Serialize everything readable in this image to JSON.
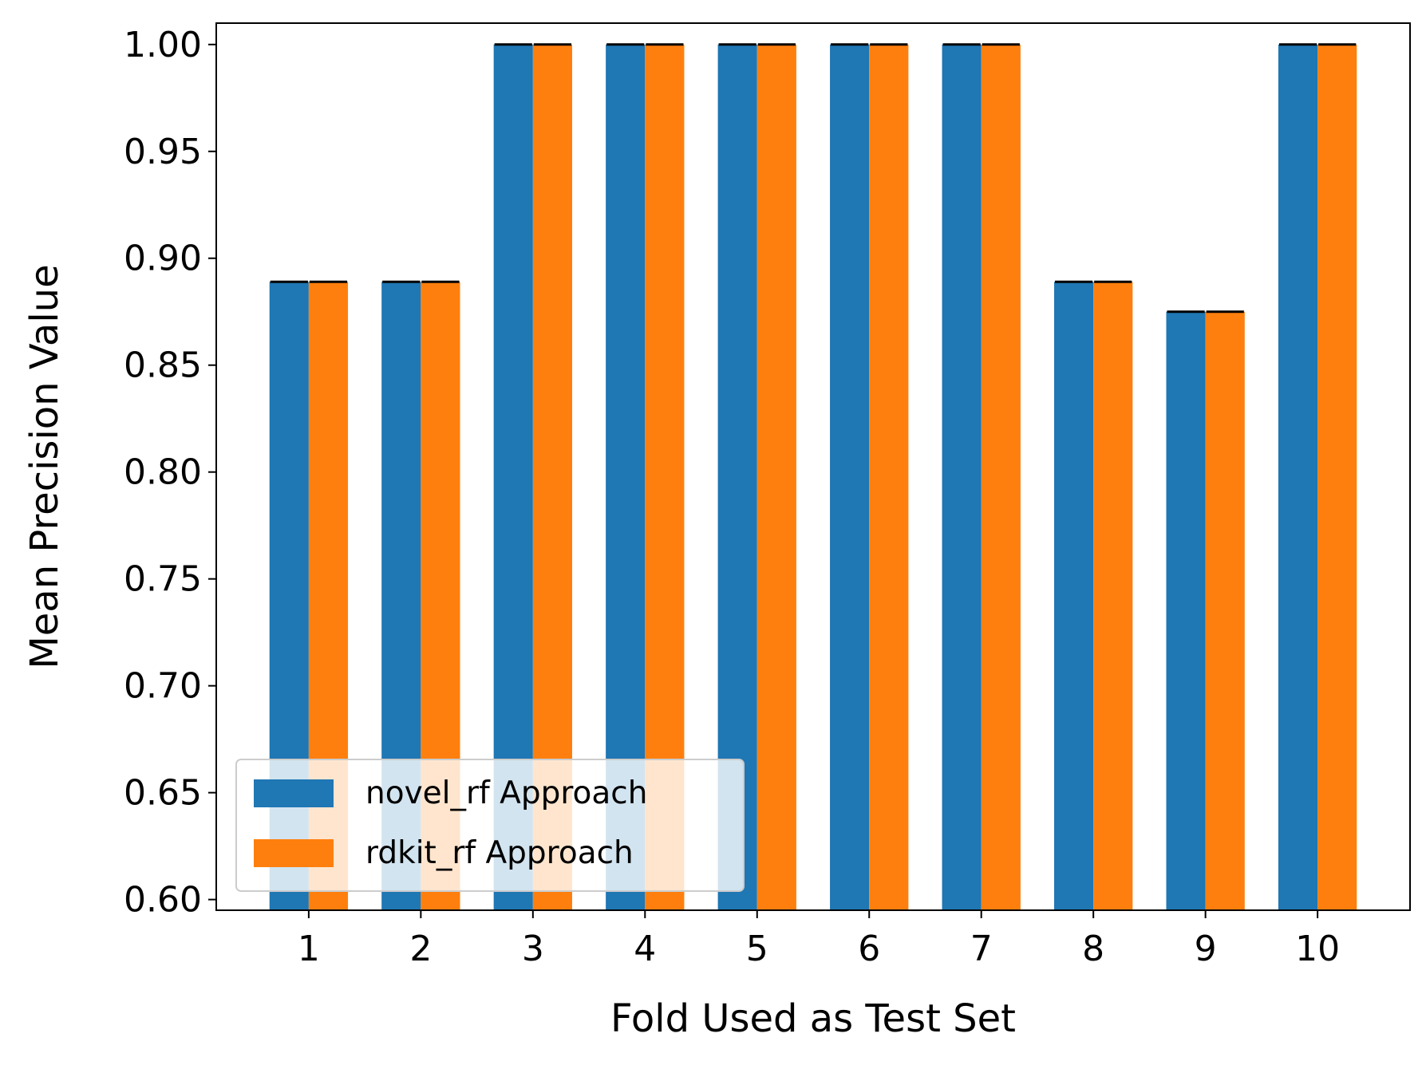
{
  "chart_data": {
    "type": "bar",
    "title": "",
    "xlabel": "Fold Used as Test Set",
    "ylabel": "Mean Precision Value",
    "categories": [
      "1",
      "2",
      "3",
      "4",
      "5",
      "6",
      "7",
      "8",
      "9",
      "10"
    ],
    "series": [
      {
        "name": "novel_rf Approach",
        "color": "#1f77b4",
        "values": [
          0.889,
          0.889,
          1.0,
          1.0,
          1.0,
          1.0,
          1.0,
          0.889,
          0.875,
          1.0
        ]
      },
      {
        "name": "rdkit_rf Approach",
        "color": "#ff7f0e",
        "values": [
          0.889,
          0.889,
          1.0,
          1.0,
          1.0,
          1.0,
          1.0,
          0.889,
          0.875,
          1.0
        ]
      }
    ],
    "error_bars": "present (zero-width caps at bar tops)",
    "ylim": [
      0.595,
      1.01
    ],
    "yticks": [
      "0.60",
      "0.65",
      "0.70",
      "0.75",
      "0.80",
      "0.85",
      "0.90",
      "0.95",
      "1.00"
    ],
    "grid": false,
    "legend_position": "lower-left"
  }
}
